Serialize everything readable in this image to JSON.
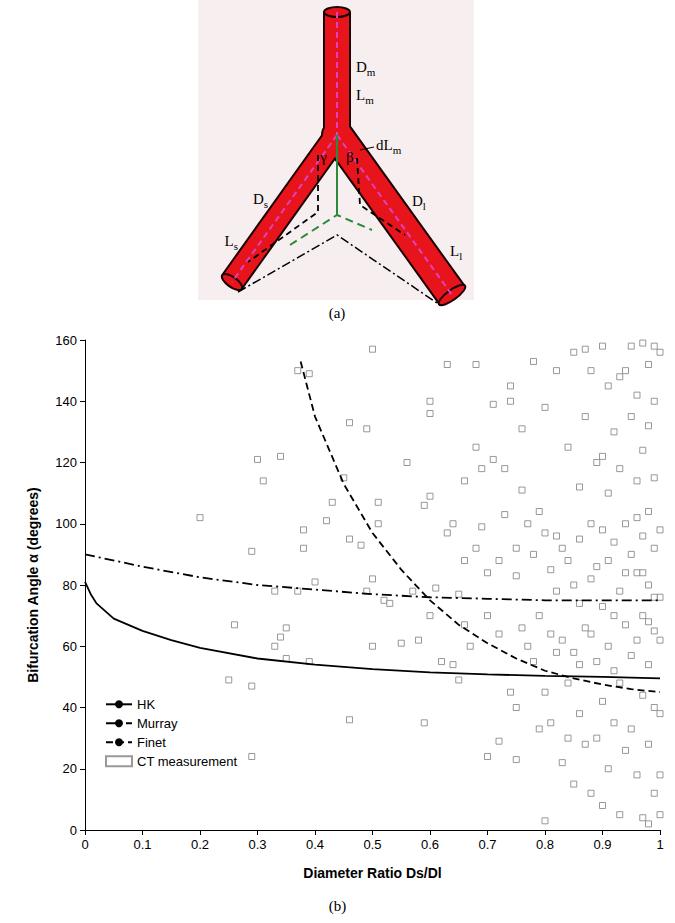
{
  "diagram": {
    "panel_label": "(a)",
    "labels": {
      "main_diameter": {
        "base": "D",
        "sub": "m"
      },
      "main_length": {
        "base": "L",
        "sub": "m"
      },
      "small_diameter": {
        "base": "D",
        "sub": "s"
      },
      "small_length": {
        "base": "L",
        "sub": "s"
      },
      "large_diameter": {
        "base": "D",
        "sub": "l"
      },
      "large_length": {
        "base": "L",
        "sub": "l"
      },
      "main_extension": {
        "base": "dL",
        "sub": "m"
      },
      "small_angle": {
        "base": "γ",
        "sub": ""
      },
      "large_angle": {
        "base": "β",
        "sub": ""
      }
    }
  },
  "chart_data": {
    "type": "line",
    "panel_label": "(b)",
    "x_label": "Diameter Ratio Ds/Dl",
    "y_label": "Bifurcation Angle α (degrees)",
    "xlim": [
      0,
      1
    ],
    "ylim": [
      0,
      160
    ],
    "xticks": [
      0,
      0.1,
      0.2,
      0.3,
      0.4,
      0.5,
      0.6,
      0.7,
      0.8,
      0.9,
      1
    ],
    "yticks": [
      0,
      20,
      40,
      60,
      80,
      100,
      120,
      140,
      160
    ],
    "grid": false,
    "legend": "lower left",
    "series": [
      {
        "name": "HK",
        "type": "line",
        "color": "#000000",
        "line_style": "solid",
        "x": [
          0,
          0.01,
          0.02,
          0.05,
          0.1,
          0.15,
          0.2,
          0.3,
          0.4,
          0.5,
          0.6,
          0.7,
          0.8,
          0.9,
          1
        ],
        "values": [
          81,
          77,
          74,
          69,
          65,
          62,
          59.5,
          56,
          54,
          52.5,
          51.5,
          50.8,
          50.3,
          50,
          49.5
        ]
      },
      {
        "name": "Murray",
        "type": "line",
        "color": "#000000",
        "line_style": "dashdot",
        "x": [
          0,
          0.1,
          0.2,
          0.3,
          0.4,
          0.5,
          0.6,
          0.7,
          0.8,
          0.9,
          1
        ],
        "values": [
          90,
          86,
          82.5,
          80,
          78.5,
          77,
          76,
          75.5,
          75,
          75,
          75
        ]
      },
      {
        "name": "Finet",
        "type": "line",
        "color": "#000000",
        "line_style": "dashed",
        "x": [
          0.375,
          0.4,
          0.45,
          0.5,
          0.55,
          0.6,
          0.65,
          0.7,
          0.75,
          0.8,
          0.85,
          0.9,
          0.95,
          1
        ],
        "values": [
          153,
          135,
          113,
          97,
          85,
          75,
          67,
          61,
          56,
          52,
          49.5,
          47.5,
          46,
          45
        ]
      },
      {
        "name": "CT measurement",
        "type": "scatter",
        "color": "#808080",
        "marker": "square",
        "x": [
          0.2,
          0.25,
          0.26,
          0.29,
          0.29,
          0.29,
          0.3,
          0.31,
          0.33,
          0.33,
          0.34,
          0.34,
          0.35,
          0.35,
          0.37,
          0.37,
          0.39,
          0.38,
          0.38,
          0.39,
          0.4,
          0.42,
          0.43,
          0.45,
          0.46,
          0.46,
          0.46,
          0.48,
          0.49,
          0.49,
          0.5,
          0.5,
          0.5,
          0.51,
          0.51,
          0.52,
          0.53,
          0.55,
          0.56,
          0.57,
          0.58,
          0.59,
          0.59,
          0.6,
          0.6,
          0.6,
          0.6,
          0.61,
          0.62,
          0.63,
          0.64,
          0.64,
          0.65,
          0.65,
          0.66,
          0.66,
          0.67,
          0.68,
          0.68,
          0.68,
          0.69,
          0.69,
          0.7,
          0.7,
          0.71,
          0.71,
          0.72,
          0.72,
          0.72,
          0.73,
          0.73,
          0.74,
          0.74,
          0.74,
          0.75,
          0.75,
          0.75,
          0.76,
          0.76,
          0.76,
          0.77,
          0.77,
          0.78,
          0.78,
          0.78,
          0.79,
          0.79,
          0.8,
          0.8,
          0.8,
          0.8,
          0.81,
          0.81,
          0.81,
          0.82,
          0.82,
          0.82,
          0.83,
          0.83,
          0.83,
          0.84,
          0.84,
          0.84,
          0.85,
          0.85,
          0.85,
          0.85,
          0.86,
          0.86,
          0.86,
          0.86,
          0.87,
          0.87,
          0.87,
          0.87,
          0.88,
          0.88,
          0.88,
          0.88,
          0.89,
          0.89,
          0.89,
          0.89,
          0.9,
          0.9,
          0.9,
          0.9,
          0.9,
          0.91,
          0.91,
          0.91,
          0.91,
          0.91,
          0.92,
          0.92,
          0.92,
          0.92,
          0.93,
          0.93,
          0.93,
          0.93,
          0.93,
          0.94,
          0.94,
          0.94,
          0.94,
          0.95,
          0.95,
          0.95,
          0.95,
          0.95,
          0.96,
          0.96,
          0.96,
          0.96,
          0.96,
          0.97,
          0.97,
          0.97,
          0.97,
          0.97,
          0.97,
          0.98,
          0.98,
          0.98,
          0.98,
          0.98,
          0.98,
          0.98,
          0.99,
          0.99,
          0.99,
          0.99,
          0.99,
          0.99,
          0.99,
          1,
          1,
          1,
          1,
          1,
          1,
          1,
          0.63,
          0.66,
          0.7,
          0.75,
          0.79,
          0.82,
          0.84,
          0.86,
          0.88,
          0.9,
          0.92,
          0.94,
          0.96,
          0.97,
          0.99,
          0.98
        ],
        "values": [
          102,
          49,
          67,
          91,
          47,
          24,
          121,
          114,
          78,
          60,
          122,
          63,
          66,
          56,
          150,
          78,
          149,
          92,
          98,
          55,
          81,
          101,
          107,
          115,
          36,
          95,
          133,
          93,
          78,
          131,
          157,
          82,
          60,
          107,
          100,
          75,
          74,
          61,
          120,
          78,
          62,
          35,
          106,
          140,
          136,
          109,
          70,
          79,
          55,
          152,
          100,
          54,
          77,
          49,
          114,
          88,
          60,
          152,
          125,
          92,
          118,
          99,
          70,
          24,
          139,
          121,
          88,
          64,
          29,
          118,
          103,
          145,
          140,
          45,
          83,
          40,
          23,
          131,
          111,
          66,
          100,
          60,
          153,
          90,
          55,
          104,
          70,
          138,
          97,
          45,
          3,
          85,
          64,
          35,
          150,
          96,
          58,
          92,
          62,
          22,
          125,
          88,
          48,
          156,
          80,
          58,
          15,
          112,
          95,
          74,
          38,
          157,
          135,
          66,
          28,
          150,
          100,
          82,
          12,
          120,
          86,
          55,
          30,
          158,
          98,
          73,
          42,
          8,
          145,
          110,
          88,
          60,
          20,
          130,
          94,
          52,
          35,
          148,
          118,
          78,
          48,
          5,
          150,
          100,
          67,
          26,
          158,
          135,
          90,
          57,
          33,
          142,
          114,
          84,
          62,
          18,
          159,
          124,
          96,
          70,
          44,
          4,
          152,
          132,
          104,
          80,
          54,
          28,
          2,
          158,
          140,
          115,
          92,
          65,
          40,
          12,
          156,
          98,
          76,
          62,
          38,
          18,
          5,
          97,
          67,
          84,
          92,
          33,
          78,
          30,
          54,
          64,
          122,
          70,
          84,
          102,
          84,
          76,
          68
        ]
      }
    ]
  }
}
